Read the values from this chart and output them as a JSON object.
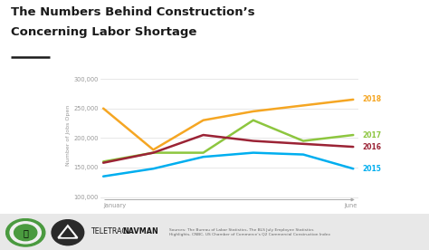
{
  "title_line1": "The Numbers Behind Construction’s",
  "title_line2": "Concerning Labor Shortage",
  "ylabel": "Number of Jobs Open",
  "xlabel_left": "January",
  "xlabel_right": "June",
  "x": [
    0,
    1,
    2,
    3,
    4,
    5
  ],
  "series": {
    "2018": {
      "values": [
        250000,
        180000,
        230000,
        245000,
        255000,
        265000
      ],
      "color": "#f5a623"
    },
    "2017": {
      "values": [
        160000,
        175000,
        175000,
        230000,
        195000,
        205000
      ],
      "color": "#8dc63f"
    },
    "2016": {
      "values": [
        158000,
        175000,
        205000,
        195000,
        190000,
        185000
      ],
      "color": "#9b2335"
    },
    "2015": {
      "values": [
        135000,
        148000,
        168000,
        175000,
        172000,
        148000
      ],
      "color": "#00aeef"
    }
  },
  "ylim": [
    95000,
    315000
  ],
  "yticks": [
    100000,
    150000,
    200000,
    250000,
    300000
  ],
  "ytick_labels": [
    "100,000",
    "150,000",
    "200,000",
    "250,000",
    "300,000"
  ],
  "background_color": "#ffffff",
  "source_text": "Sources: The Bureau of Labor Statistics, The BLS July Employee Statistics\nHighlights, CNBC, US Chamber of Commerce’s Q2 Commercial Construction Index",
  "underline_color": "#1a1a1a",
  "footer_bg": "#e8e8e8",
  "navman_text_teletrac": "TELETRAC",
  "navman_text_navman": "NAVMAN"
}
